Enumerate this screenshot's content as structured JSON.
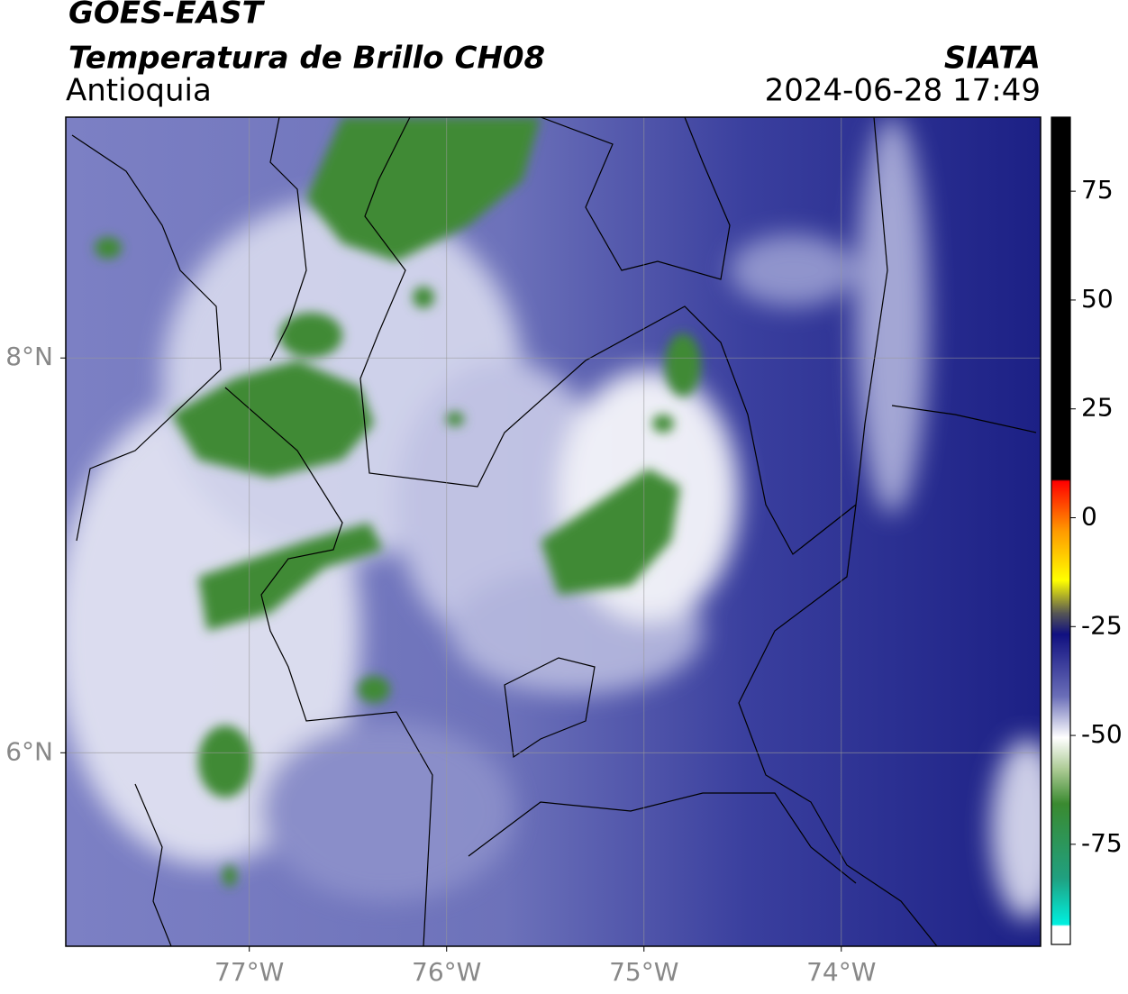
{
  "header": {
    "title": "GOES-EAST",
    "subtitle": "Temperatura de Brillo CH08",
    "region": "Antioquia",
    "source": "SIATA",
    "datetime": "2024-06-28 17:49"
  },
  "map": {
    "xlim": [
      -77.93,
      -72.99
    ],
    "ylim": [
      5.02,
      9.22
    ],
    "xticks": [
      {
        "value": -77,
        "label": "77°W"
      },
      {
        "value": -76,
        "label": "76°W"
      },
      {
        "value": -75,
        "label": "75°W"
      },
      {
        "value": -74,
        "label": "74°W"
      }
    ],
    "yticks": [
      {
        "value": 6,
        "label": "6°N"
      },
      {
        "value": 8,
        "label": "8°N"
      }
    ],
    "grid": true
  },
  "colorbar": {
    "lim": [
      -98,
      92
    ],
    "ticks": [
      -75,
      -50,
      -25,
      0,
      25,
      50,
      75
    ]
  }
}
